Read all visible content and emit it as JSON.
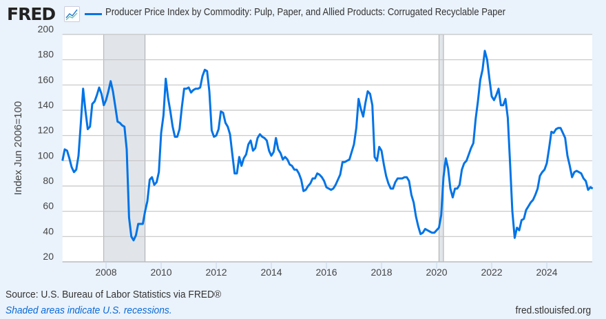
{
  "header": {
    "logo_text": "FRED",
    "logo_icon": "line-chart-icon",
    "title": "Producer Price Index by Commodity: Pulp, Paper, and Allied Products: Corrugated Recyclable Paper"
  },
  "footer": {
    "source": "Source: U.S. Bureau of Labor Statistics via FRED®",
    "shaded_note": "Shaded areas indicate U.S. recessions.",
    "site": "fred.stlouisfed.org"
  },
  "chart_data": {
    "type": "line",
    "title": "Producer Price Index by Commodity: Pulp, Paper, and Allied Products: Corrugated Recyclable Paper",
    "xlabel": "",
    "ylabel": "Index Jun 2006=100",
    "x_start": "2006-06",
    "frequency": "monthly",
    "xlim": [
      "2006-06",
      "2025-09"
    ],
    "ylim": [
      20,
      200
    ],
    "yticks": [
      20,
      40,
      60,
      80,
      100,
      120,
      140,
      160,
      180,
      200
    ],
    "xticks": [
      "2008",
      "2010",
      "2012",
      "2014",
      "2016",
      "2018",
      "2020",
      "2022",
      "2024"
    ],
    "grid": true,
    "legend": "top",
    "series_color": "#0073e6",
    "recession_color": "#e1e5ea",
    "recessions": [
      [
        "2007-12",
        "2009-06"
      ],
      [
        "2020-02",
        "2020-04"
      ]
    ],
    "values": [
      100,
      109,
      108,
      102,
      95,
      91,
      93,
      104,
      130,
      157,
      140,
      125,
      127,
      145,
      147,
      152,
      158,
      153,
      144,
      148,
      155,
      163,
      155,
      143,
      131,
      130,
      128,
      127,
      109,
      55,
      40,
      37,
      41,
      50,
      50,
      50,
      60,
      68,
      85,
      87,
      81,
      83,
      91,
      122,
      136,
      165,
      150,
      139,
      127,
      119,
      119,
      125,
      142,
      157,
      157,
      158,
      154,
      156,
      157,
      157,
      158,
      167,
      172,
      171,
      155,
      124,
      119,
      120,
      125,
      139,
      138,
      130,
      127,
      121,
      105,
      90,
      90,
      103,
      96,
      102,
      105,
      113,
      116,
      108,
      110,
      118,
      121,
      119,
      118,
      116,
      108,
      104,
      107,
      118,
      109,
      106,
      101,
      103,
      101,
      97,
      96,
      93,
      93,
      90,
      85,
      76,
      77,
      80,
      82,
      86,
      86,
      90,
      89,
      87,
      84,
      79,
      78,
      77,
      78,
      81,
      85,
      89,
      99,
      99,
      100,
      101,
      107,
      113,
      126,
      149,
      141,
      135,
      146,
      155,
      153,
      144,
      103,
      100,
      111,
      108,
      97,
      88,
      82,
      78,
      78,
      83,
      86,
      86,
      86,
      87,
      87,
      84,
      73,
      67,
      56,
      48,
      42,
      43,
      46,
      45,
      44,
      43,
      43,
      45,
      47,
      57,
      87,
      102,
      94,
      78,
      71,
      78,
      78,
      81,
      93,
      98,
      100,
      105,
      110,
      114,
      133,
      147,
      164,
      172,
      187,
      180,
      165,
      151,
      148,
      152,
      157,
      144,
      144,
      149,
      134,
      98,
      60,
      39,
      47,
      45,
      53,
      54,
      61,
      64,
      67,
      69,
      73,
      78,
      88,
      91,
      93,
      98,
      110,
      123,
      122,
      125,
      126,
      126,
      122,
      118,
      104,
      96,
      87,
      91,
      92,
      91,
      90,
      86,
      84,
      77,
      79,
      78
    ]
  }
}
